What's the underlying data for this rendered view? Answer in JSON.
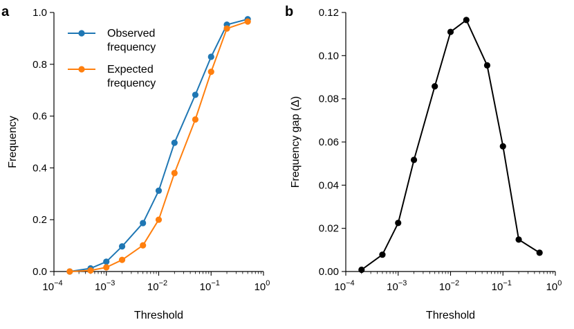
{
  "chart_data": [
    {
      "panel": "a",
      "type": "line",
      "xscale": "log",
      "xlabel": "Threshold",
      "ylabel": "Frequency",
      "xlim_exp": [
        -4,
        0
      ],
      "ylim": [
        0,
        1.0
      ],
      "xticks": [
        {
          "base": "10",
          "exp": "−4",
          "v": -4
        },
        {
          "base": "10",
          "exp": "−3",
          "v": -3
        },
        {
          "base": "10",
          "exp": "−2",
          "v": -2
        },
        {
          "base": "10",
          "exp": "−1",
          "v": -1
        },
        {
          "base": "10",
          "exp": "0",
          "v": 0
        }
      ],
      "yticks": [
        "0.0",
        "0.2",
        "0.4",
        "0.6",
        "0.8",
        "1.0"
      ],
      "legend_position": "top-left",
      "x": [
        0.0002,
        0.0005,
        0.001,
        0.002,
        0.005,
        0.01,
        0.02,
        0.05,
        0.1,
        0.2,
        0.5
      ],
      "series": [
        {
          "name": "Observed\nfrequency",
          "color": "#1f77b4",
          "values": [
            0.0,
            0.012,
            0.038,
            0.097,
            0.187,
            0.312,
            0.497,
            0.682,
            0.829,
            0.953,
            0.974
          ]
        },
        {
          "name": "Expected\nfrequency",
          "color": "#ff7f0e",
          "values": [
            0.0,
            0.004,
            0.016,
            0.045,
            0.101,
            0.2,
            0.38,
            0.587,
            0.771,
            0.938,
            0.965
          ]
        }
      ]
    },
    {
      "panel": "b",
      "type": "line",
      "xscale": "log",
      "xlabel": "Threshold",
      "ylabel": "Frequency gap (Δ)",
      "xlim_exp": [
        -4,
        0
      ],
      "ylim": [
        0,
        0.12
      ],
      "xticks": [
        {
          "base": "10",
          "exp": "−4",
          "v": -4
        },
        {
          "base": "10",
          "exp": "−3",
          "v": -3
        },
        {
          "base": "10",
          "exp": "−2",
          "v": -2
        },
        {
          "base": "10",
          "exp": "−1",
          "v": -1
        },
        {
          "base": "10",
          "exp": "0",
          "v": 0
        }
      ],
      "yticks": [
        "0.00",
        "0.02",
        "0.04",
        "0.06",
        "0.08",
        "0.10",
        "0.12"
      ],
      "x": [
        0.0002,
        0.0005,
        0.001,
        0.002,
        0.005,
        0.01,
        0.02,
        0.05,
        0.1,
        0.2,
        0.5
      ],
      "series": [
        {
          "name": "Frequency gap",
          "color": "#000000",
          "values": [
            0.0008,
            0.0078,
            0.0225,
            0.0517,
            0.0858,
            0.111,
            0.1165,
            0.0955,
            0.058,
            0.0148,
            0.0087
          ]
        }
      ]
    }
  ]
}
